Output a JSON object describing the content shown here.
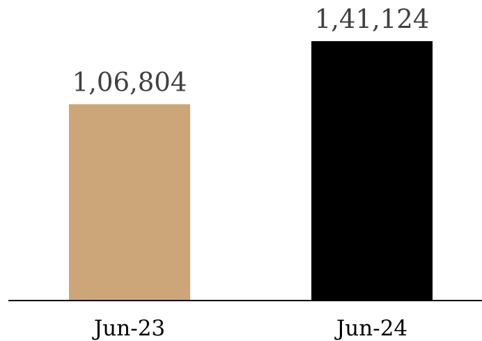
{
  "chart_data": {
    "type": "bar",
    "categories": [
      "Jun-23",
      "Jun-24"
    ],
    "values": [
      106804,
      141124
    ],
    "value_labels": [
      "1,06,804",
      "1,41,124"
    ],
    "colors": [
      "#cca678",
      "#000000"
    ],
    "title": "",
    "xlabel": "",
    "ylabel": "",
    "ylim": [
      0,
      141124
    ],
    "grid": false,
    "legend": "none"
  }
}
